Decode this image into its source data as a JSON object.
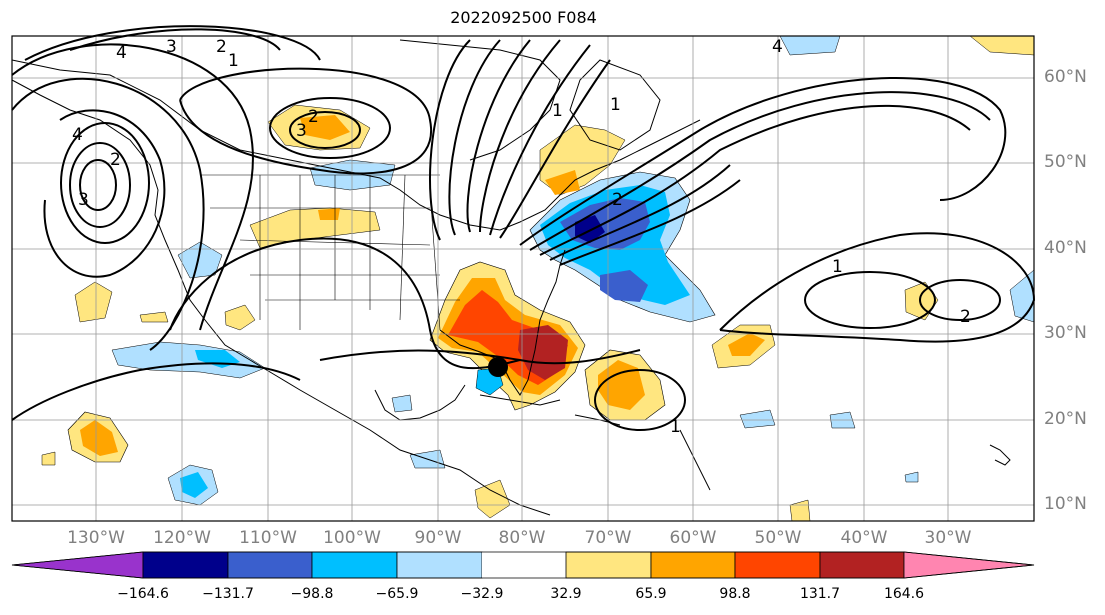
{
  "title": "2022092500 F084",
  "lat_labels": [
    "60°N",
    "50°N",
    "40°N",
    "30°N",
    "20°N",
    "10°N"
  ],
  "lon_labels": [
    "130°W",
    "120°W",
    "110°W",
    "100°W",
    "90°W",
    "80°W",
    "70°W",
    "60°W",
    "50°W",
    "40°W",
    "30°W"
  ],
  "colorbar": {
    "ticks": [
      "−164.6",
      "−131.7",
      "−98.8",
      "−65.9",
      "−32.9",
      "32.9",
      "65.9",
      "98.8",
      "131.7",
      "164.6"
    ],
    "colors": [
      "#9933cc",
      "#00008b",
      "#3a5fcd",
      "#00bfff",
      "#b0e0ff",
      "#ffffff",
      "#ffe680",
      "#ffa500",
      "#ff4500",
      "#b22222",
      "#ff85b0"
    ]
  },
  "contour_labels": [
    "4",
    "3",
    "2",
    "1",
    "2",
    "3",
    "4",
    "3",
    "2",
    "1",
    "2",
    "1",
    "1",
    "2",
    "1",
    "4"
  ],
  "storm_marker": "black-dot"
}
